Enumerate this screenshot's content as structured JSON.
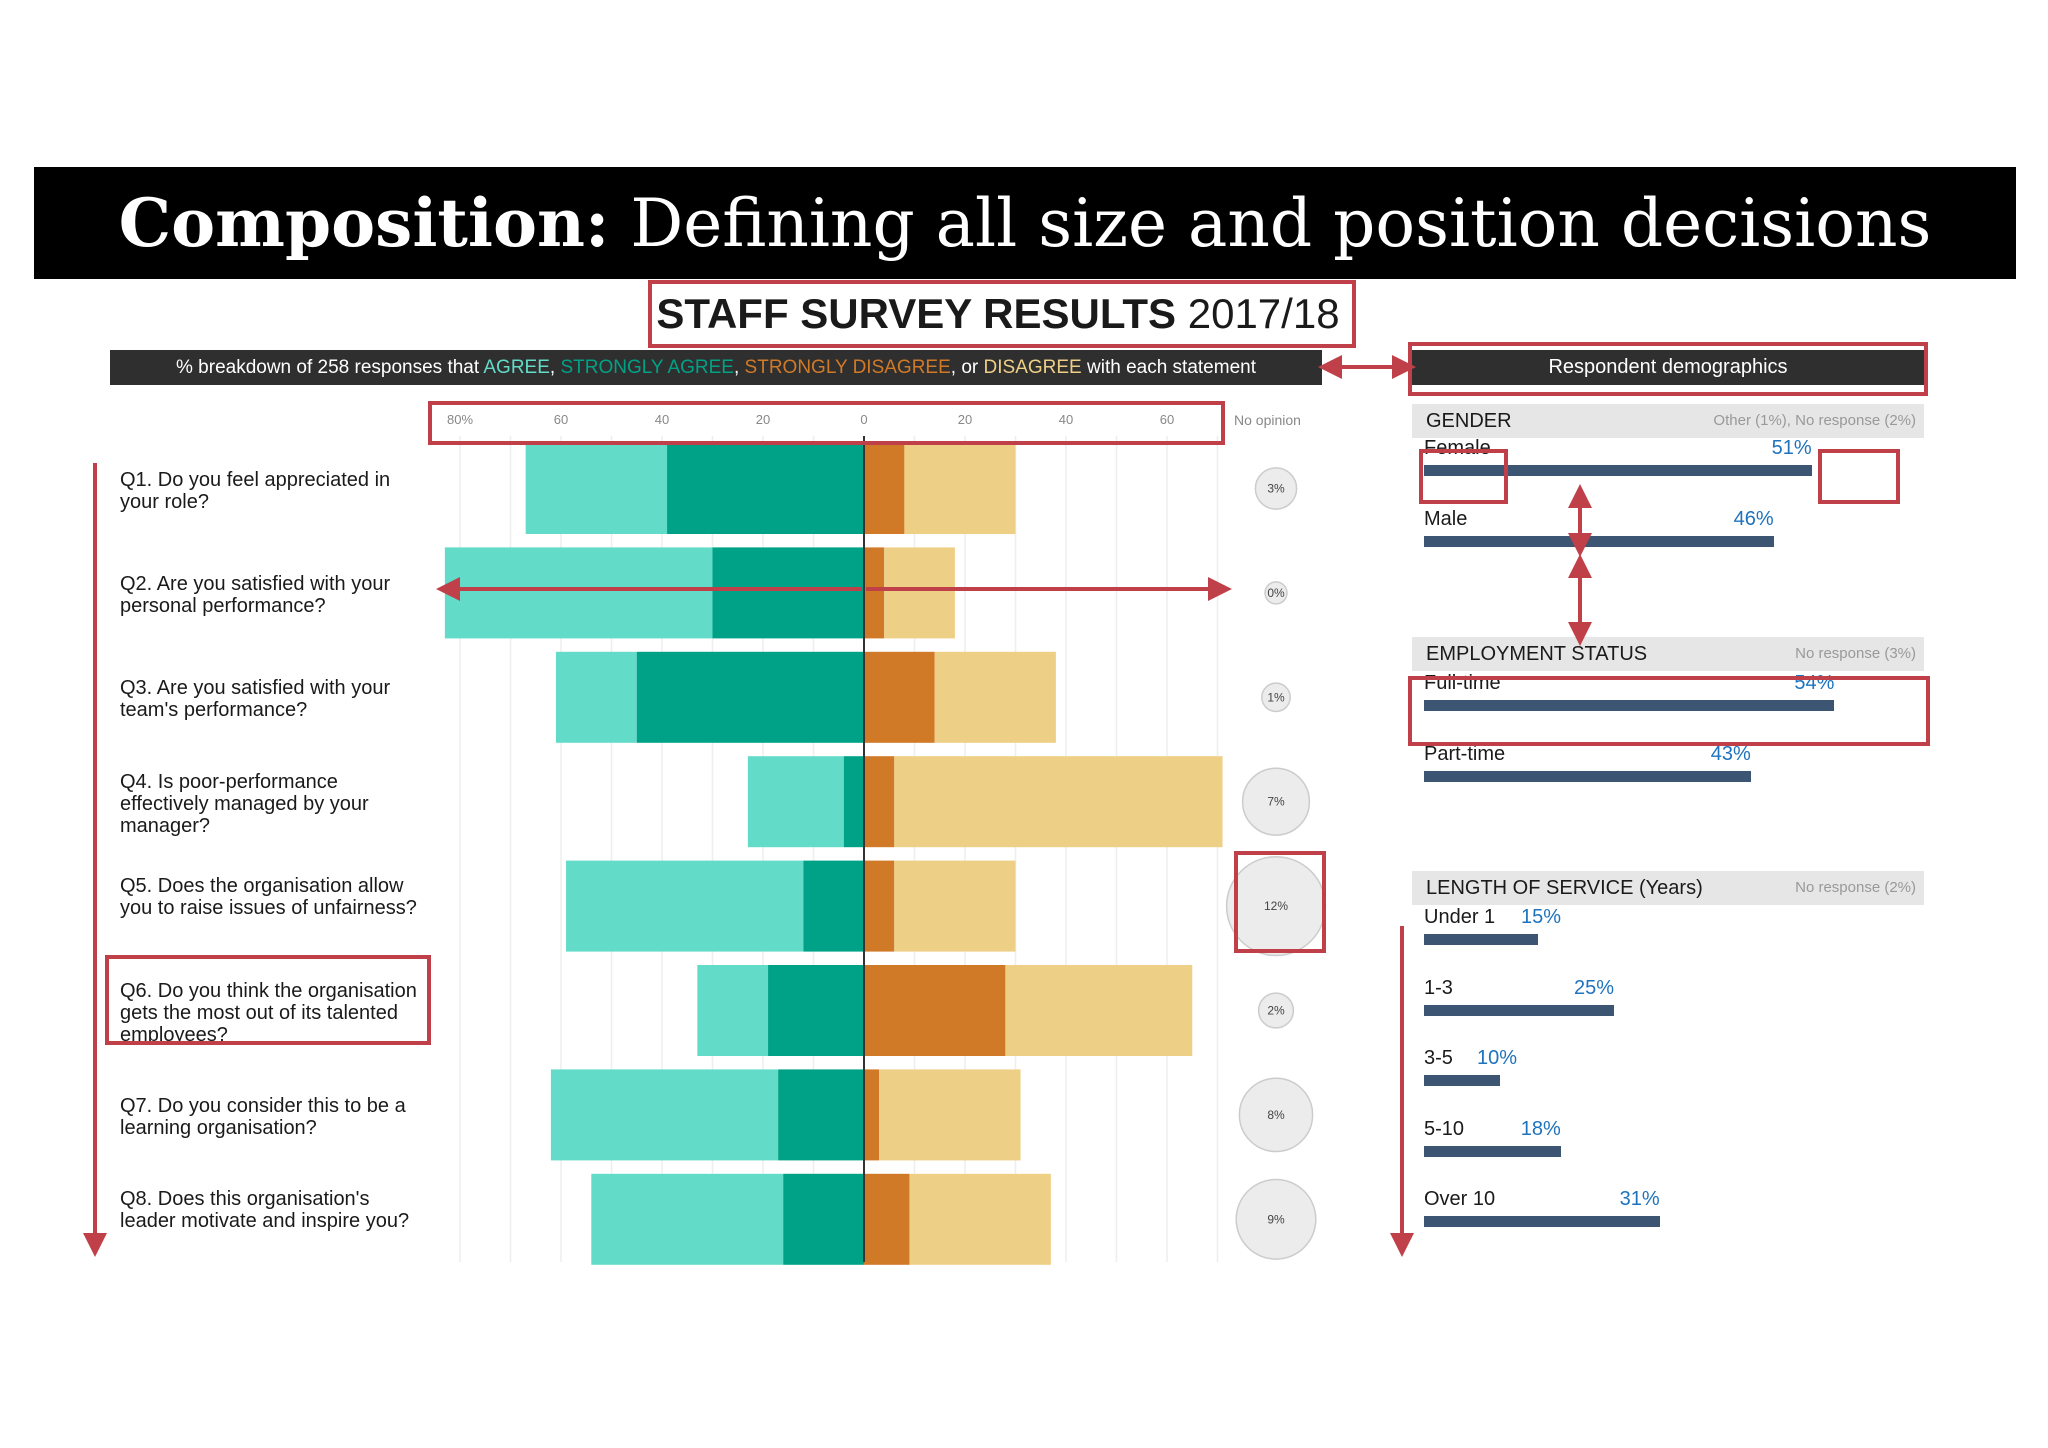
{
  "header": {
    "bold": "Composition:",
    "rest": " Defining all size and position decisions"
  },
  "survey_title": {
    "bold": "STAFF SURVEY RESULTS",
    "rest": " 2017/18"
  },
  "legend": {
    "prefix": "% breakdown of 258 responses that ",
    "agree": "AGREE",
    "sep1": ", ",
    "strongly_agree": "STRONGLY AGREE",
    "sep2": ", ",
    "strongly_disagree": "STRONGLY DISAGREE",
    "sep3": ", or ",
    "disagree": "DISAGREE",
    "suffix": " with each statement"
  },
  "colors": {
    "agree": "#63dbc9",
    "strongly_agree": "#00a287",
    "strongly_disagree": "#d07a28",
    "disagree": "#eecf86",
    "demo_bar": "#3c5572",
    "value_text": "#1e73be",
    "highlight": "#c0404a"
  },
  "chart_data": [
    {
      "type": "bar",
      "orientation": "horizontal-diverging",
      "xlim": [
        -80,
        70
      ],
      "x_ticks": [
        "80%",
        "60",
        "40",
        "20",
        "0",
        "20",
        "40",
        "60"
      ],
      "x_tick_values": [
        -80,
        -60,
        -40,
        -20,
        0,
        20,
        40,
        60
      ],
      "no_opinion_label": "No opinion",
      "categories": [
        "Q1. Do you feel appreciated in your role?",
        "Q2. Are you satisfied with your personal performance?",
        "Q3. Are you satisfied with your team's performance?",
        "Q4. Is poor-performance effectively managed by your manager?",
        "Q5. Does the organisation allow you to raise issues of unfairness?",
        "Q6. Do you think the organisation gets the most out of its talented employees?",
        "Q7. Do you consider this to be a learning organisation?",
        "Q8. Does this organisation's leader motivate and inspire you?"
      ],
      "series": [
        {
          "name": "AGREE",
          "values": [
            28,
            53,
            16,
            19,
            47,
            14,
            45,
            38
          ]
        },
        {
          "name": "STRONGLY AGREE",
          "values": [
            39,
            30,
            45,
            4,
            12,
            19,
            17,
            16
          ]
        },
        {
          "name": "STRONGLY DISAGREE",
          "values": [
            8,
            4,
            14,
            6,
            6,
            28,
            3,
            9
          ]
        },
        {
          "name": "DISAGREE",
          "values": [
            22,
            14,
            24,
            65,
            24,
            37,
            28,
            28
          ]
        }
      ],
      "no_opinion": [
        "3%",
        "0%",
        "1%",
        "7%",
        "12%",
        "2%",
        "8%",
        "9%"
      ],
      "no_opinion_values": [
        3,
        0,
        1,
        7,
        12,
        2,
        8,
        9
      ]
    },
    {
      "type": "bar",
      "title": "Respondent demographics",
      "sections": [
        {
          "name": "GENDER",
          "note": "Other (1%), No response (2%)",
          "items": [
            {
              "label": "Female",
              "value": 51,
              "text": "51%"
            },
            {
              "label": "Male",
              "value": 46,
              "text": "46%"
            }
          ]
        },
        {
          "name": "EMPLOYMENT STATUS",
          "note": "No response (3%)",
          "items": [
            {
              "label": "Full-time",
              "value": 54,
              "text": "54%"
            },
            {
              "label": "Part-time",
              "value": 43,
              "text": "43%"
            }
          ]
        },
        {
          "name": "LENGTH OF SERVICE (Years)",
          "note": "No response (2%)",
          "items": [
            {
              "label": "Under 1",
              "value": 15,
              "text": "15%"
            },
            {
              "label": "1-3",
              "value": 25,
              "text": "25%"
            },
            {
              "label": "3-5",
              "value": 10,
              "text": "10%"
            },
            {
              "label": "5-10",
              "value": 18,
              "text": "18%"
            },
            {
              "label": "Over 10",
              "value": 31,
              "text": "31%"
            }
          ]
        }
      ]
    }
  ]
}
